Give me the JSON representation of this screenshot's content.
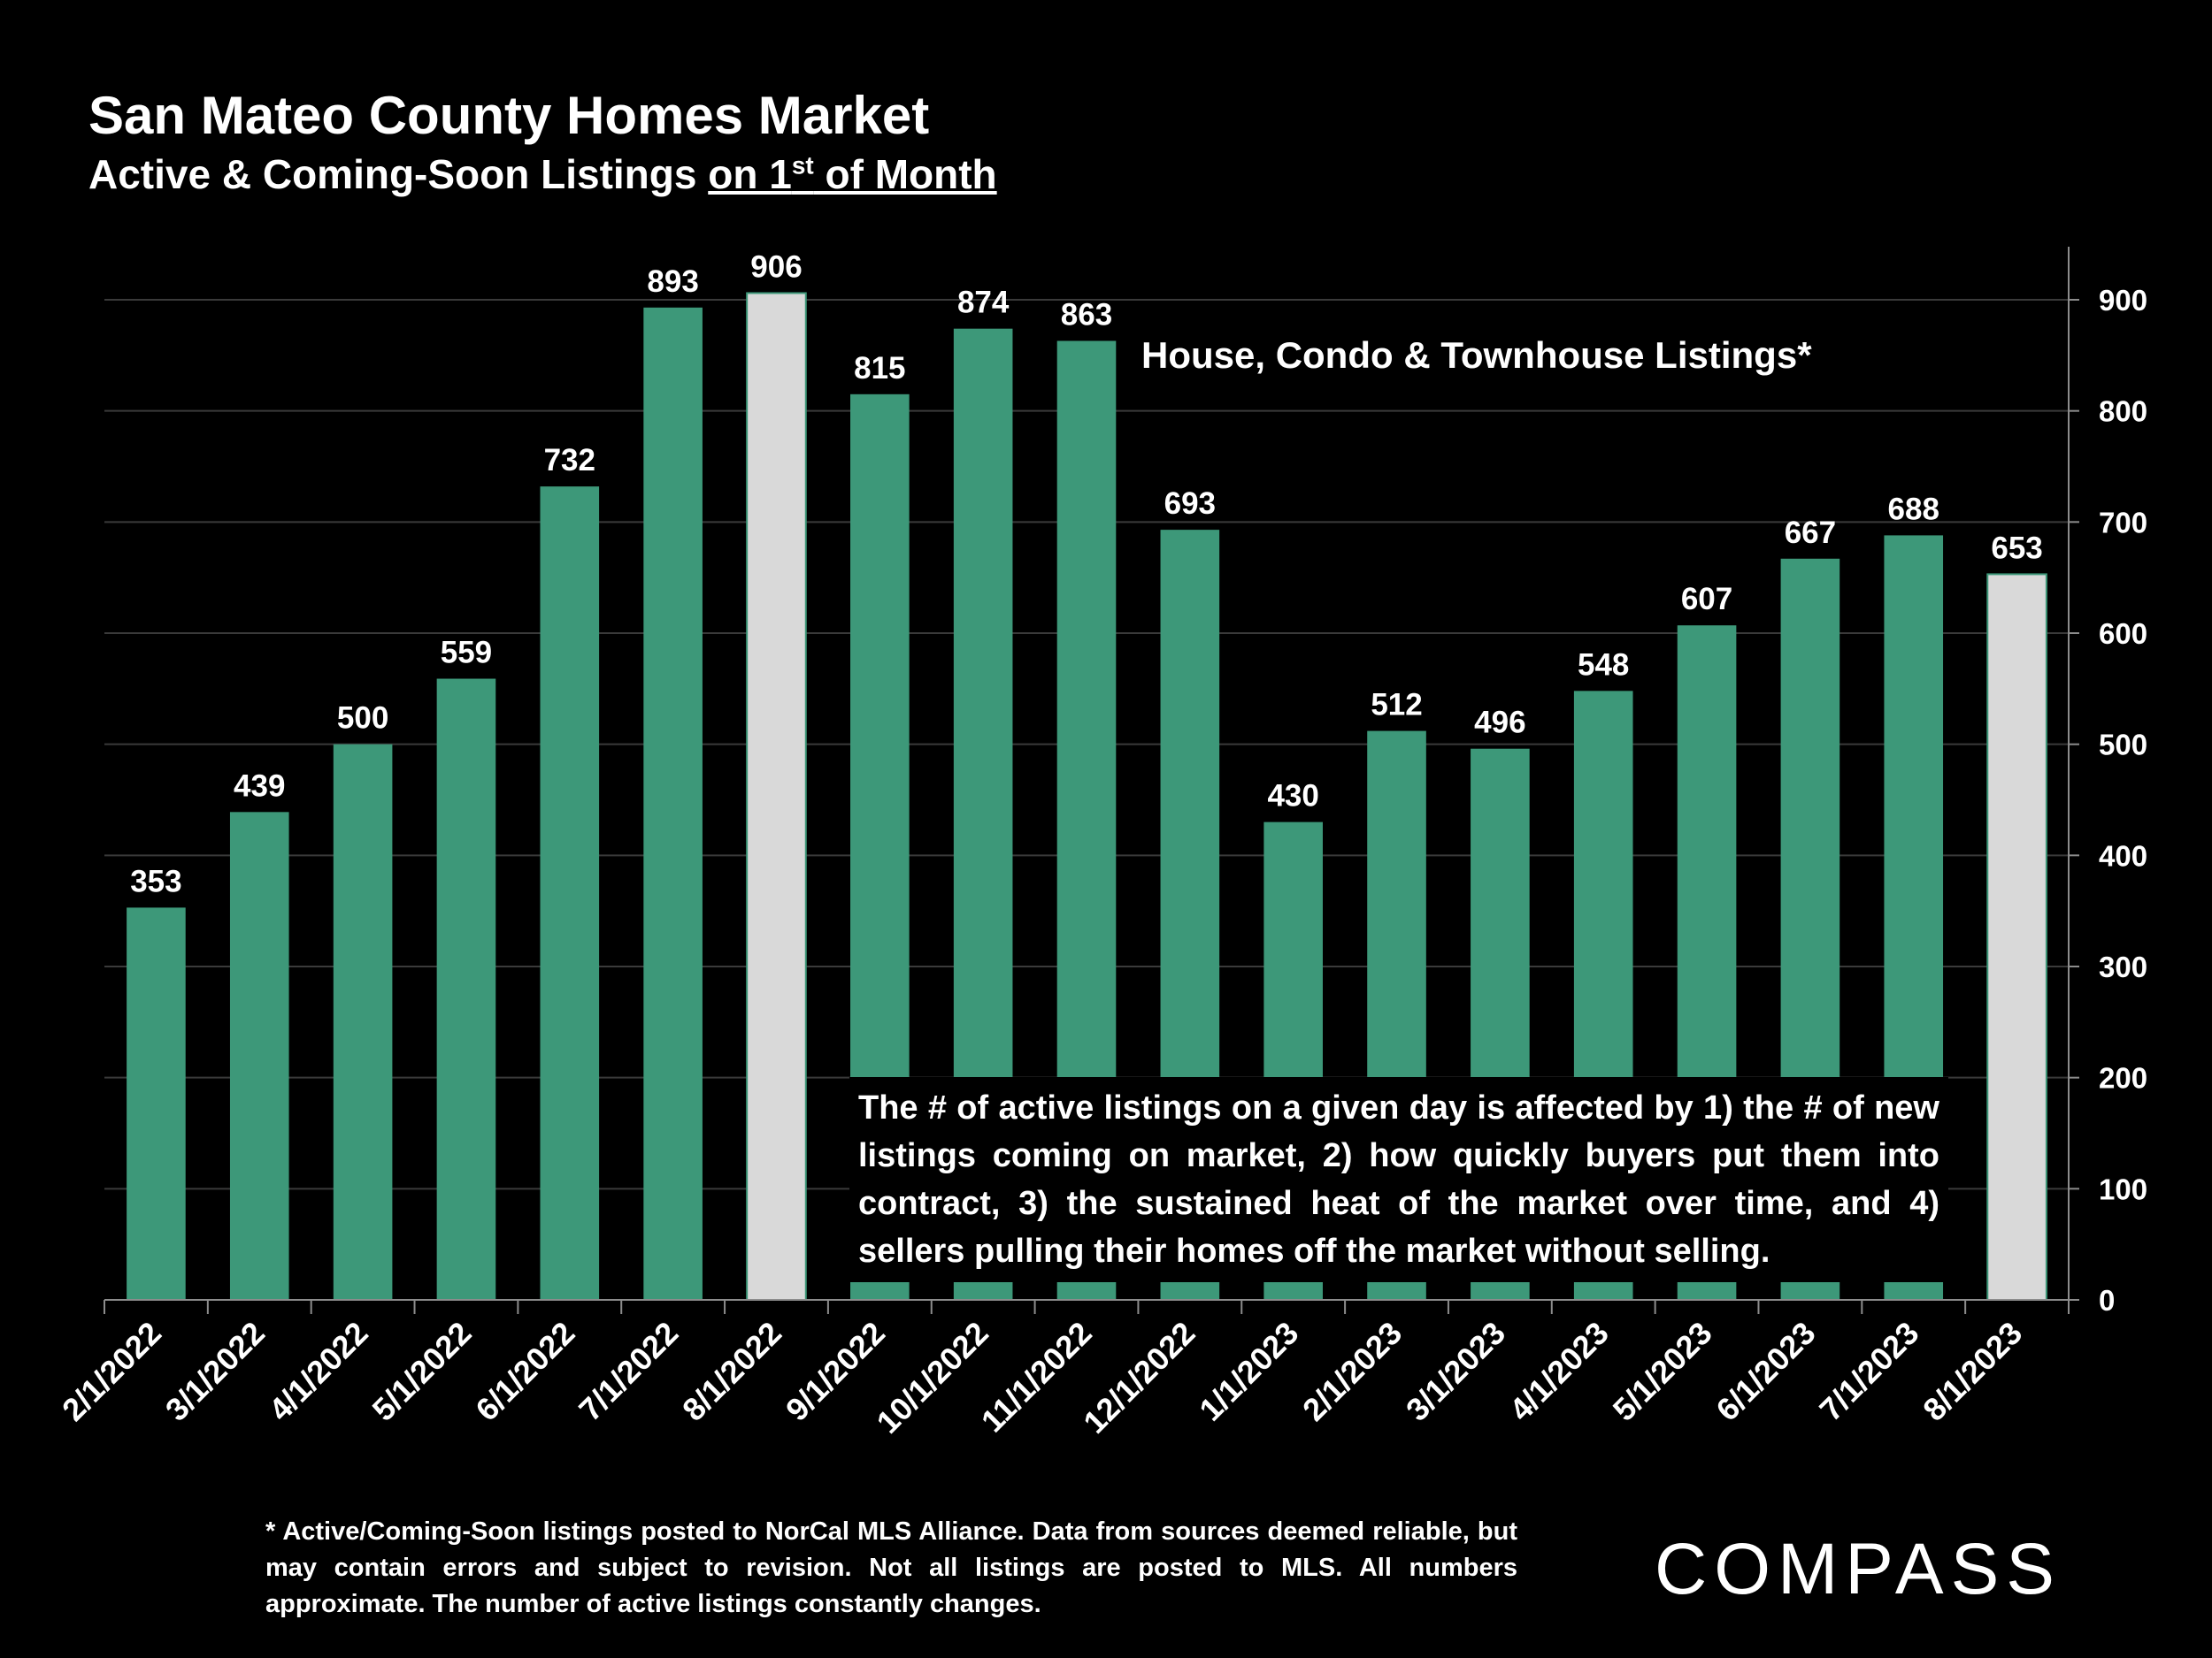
{
  "header": {
    "title": "San Mateo County Homes Market",
    "subtitle_prefix": "Active & Coming-Soon Listings ",
    "subtitle_underlined_a": "on 1",
    "subtitle_superscript": "st",
    "subtitle_underlined_b": " of Month"
  },
  "annotation": "House, Condo & Townhouse Listings*",
  "note": "The # of active listings on a given day is affected by 1) the # of new listings coming on market, 2) how quickly buyers put them into contract, 3) the sustained heat of the market over time, and 4) sellers pulling their homes off the market without selling.",
  "footnote": "* Active/Coming-Soon listings posted to NorCal MLS Alliance.  Data from sources deemed reliable, but may contain errors and subject to revision.  Not all listings are posted to MLS. All numbers approximate. The number of active listings constantly changes.",
  "logo": {
    "text": "COMPASS"
  },
  "colors": {
    "bar": "#3d9879",
    "highlight": "#d9d9d9",
    "background": "#000000",
    "grid": "#3a3a3a",
    "axis": "#8c8c8c"
  },
  "chart_data": {
    "type": "bar",
    "categories": [
      "2/1/2022",
      "3/1/2022",
      "4/1/2022",
      "5/1/2022",
      "6/1/2022",
      "7/1/2022",
      "8/1/2022",
      "9/1/2022",
      "10/1/2022",
      "11/1/2022",
      "12/1/2022",
      "1/1/2023",
      "2/1/2023",
      "3/1/2023",
      "4/1/2023",
      "5/1/2023",
      "6/1/2023",
      "7/1/2023",
      "8/1/2023"
    ],
    "values": [
      353,
      439,
      500,
      559,
      732,
      893,
      906,
      815,
      874,
      863,
      693,
      430,
      512,
      496,
      548,
      607,
      667,
      688,
      653
    ],
    "highlighted": [
      "8/1/2022",
      "8/1/2023"
    ],
    "ylim": [
      0,
      900
    ],
    "yticks": [
      0,
      100,
      200,
      300,
      400,
      500,
      600,
      700,
      800,
      900
    ],
    "y_axis_side": "right",
    "grid": true,
    "data_labels": true
  }
}
